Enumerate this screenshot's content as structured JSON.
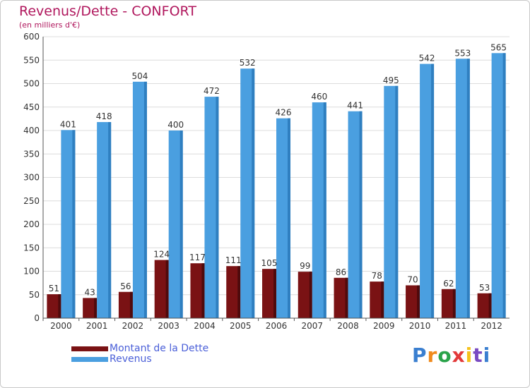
{
  "header": {
    "title": "Revenus/Dette - CONFORT",
    "subtitle": "(en milliers d'€)"
  },
  "colors": {
    "title": "#b0175d",
    "dette": "#7a1214",
    "revenus": "#4a9fe0",
    "grid": "#dcdcdc",
    "legend_text": "#4a5fd8"
  },
  "chart_data": {
    "type": "bar",
    "title": "Revenus/Dette - CONFORT",
    "subtitle": "(en milliers d'€)",
    "categories": [
      "2000",
      "2001",
      "2002",
      "2003",
      "2004",
      "2005",
      "2006",
      "2007",
      "2008",
      "2009",
      "2010",
      "2011",
      "2012"
    ],
    "series": [
      {
        "name": "Montant de la Dette",
        "values": [
          51,
          43,
          56,
          124,
          117,
          111,
          105,
          99,
          86,
          78,
          70,
          62,
          53
        ]
      },
      {
        "name": "Revenus",
        "values": [
          401,
          418,
          504,
          400,
          472,
          532,
          426,
          460,
          441,
          495,
          542,
          553,
          565
        ]
      }
    ],
    "y_ticks": [
      0,
      50,
      100,
      150,
      200,
      250,
      300,
      350,
      400,
      450,
      500,
      550,
      600
    ],
    "ylim": [
      0,
      600
    ],
    "grid": true,
    "legend_position": "bottom-left"
  },
  "legend": {
    "items": [
      {
        "label": "Montant de la Dette",
        "color": "#7a1214"
      },
      {
        "label": "Revenus",
        "color": "#4a9fe0"
      }
    ]
  },
  "logo": {
    "text": "Proxiti",
    "colors": [
      "#3a7fd0",
      "#f08a1c",
      "#2aa34a",
      "#e23a3a",
      "#f5c21b",
      "#7a4bc2",
      "#3a7fd0"
    ]
  }
}
